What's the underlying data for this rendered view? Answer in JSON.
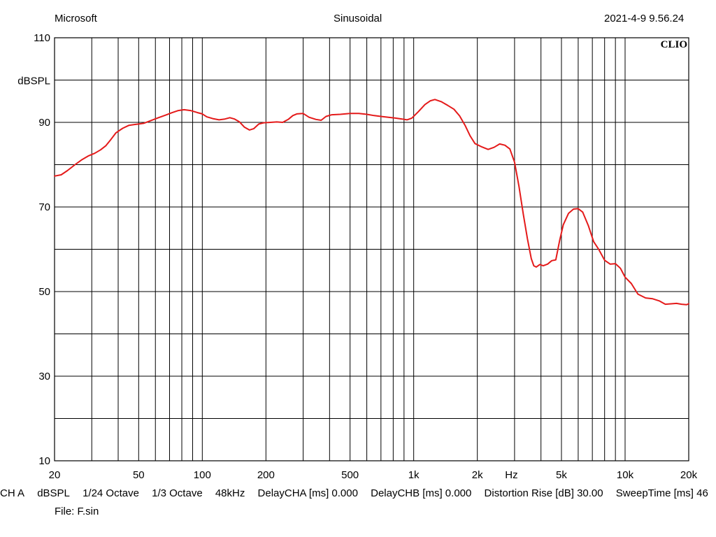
{
  "header": {
    "left": "Microsoft",
    "center": "Sinusoidal",
    "right": "2021-4-9 9.56.24"
  },
  "brand": "CLIO",
  "footer": {
    "items": [
      "CH A",
      "dBSPL",
      "1/24 Octave",
      "1/3 Octave",
      "48kHz",
      "DelayCHA [ms] 0.000",
      "DelayCHB [ms] 0.000",
      "Distortion Rise [dB] 30.00",
      "SweepTime [ms] 46"
    ],
    "file": "File: F.sin"
  },
  "chart_data": {
    "type": "line",
    "xscale": "log",
    "xlim": [
      20,
      20000
    ],
    "ylim": [
      10,
      110
    ],
    "ylabel": "dBSPL",
    "grid": true,
    "xticks": [
      {
        "v": 20,
        "t": "20"
      },
      {
        "v": 50,
        "t": "50"
      },
      {
        "v": 100,
        "t": "100"
      },
      {
        "v": 200,
        "t": "200"
      },
      {
        "v": 500,
        "t": "500"
      },
      {
        "v": 1000,
        "t": "1k"
      },
      {
        "v": 2000,
        "t": "2k"
      },
      {
        "v": 2900,
        "t": "Hz"
      },
      {
        "v": 5000,
        "t": "5k"
      },
      {
        "v": 10000,
        "t": "10k"
      },
      {
        "v": 20000,
        "t": "20k"
      }
    ],
    "yticks": [
      {
        "v": 110,
        "t": "110"
      },
      {
        "v": 90,
        "t": "90"
      },
      {
        "v": 70,
        "t": "70"
      },
      {
        "v": 50,
        "t": "50"
      },
      {
        "v": 30,
        "t": "30"
      },
      {
        "v": 10,
        "t": "10"
      }
    ],
    "series": [
      {
        "color": "#e41a1a",
        "points": [
          [
            20,
            77.3
          ],
          [
            21.5,
            77.6
          ],
          [
            23,
            78.6
          ],
          [
            25,
            80.0
          ],
          [
            27,
            81.2
          ],
          [
            29,
            82.1
          ],
          [
            31,
            82.7
          ],
          [
            33,
            83.5
          ],
          [
            35,
            84.5
          ],
          [
            37,
            86.0
          ],
          [
            39,
            87.5
          ],
          [
            42,
            88.6
          ],
          [
            45,
            89.3
          ],
          [
            48,
            89.5
          ],
          [
            50,
            89.6
          ],
          [
            53,
            89.8
          ],
          [
            57,
            90.4
          ],
          [
            62,
            91.1
          ],
          [
            67,
            91.7
          ],
          [
            72,
            92.3
          ],
          [
            77,
            92.8
          ],
          [
            82,
            93.0
          ],
          [
            88,
            92.8
          ],
          [
            95,
            92.3
          ],
          [
            100,
            92.0
          ],
          [
            105,
            91.3
          ],
          [
            112,
            90.9
          ],
          [
            120,
            90.6
          ],
          [
            128,
            90.8
          ],
          [
            135,
            91.1
          ],
          [
            142,
            90.8
          ],
          [
            150,
            90.1
          ],
          [
            158,
            88.9
          ],
          [
            167,
            88.2
          ],
          [
            175,
            88.5
          ],
          [
            185,
            89.6
          ],
          [
            195,
            89.9
          ],
          [
            210,
            90.0
          ],
          [
            225,
            90.1
          ],
          [
            240,
            90.0
          ],
          [
            255,
            90.7
          ],
          [
            268,
            91.6
          ],
          [
            280,
            92.0
          ],
          [
            300,
            92.1
          ],
          [
            320,
            91.2
          ],
          [
            345,
            90.7
          ],
          [
            365,
            90.5
          ],
          [
            385,
            91.4
          ],
          [
            410,
            91.8
          ],
          [
            450,
            91.9
          ],
          [
            500,
            92.1
          ],
          [
            550,
            92.1
          ],
          [
            600,
            91.9
          ],
          [
            650,
            91.6
          ],
          [
            700,
            91.4
          ],
          [
            760,
            91.2
          ],
          [
            820,
            91.0
          ],
          [
            880,
            90.8
          ],
          [
            930,
            90.6
          ],
          [
            980,
            91.0
          ],
          [
            1050,
            92.5
          ],
          [
            1130,
            94.2
          ],
          [
            1200,
            95.1
          ],
          [
            1260,
            95.4
          ],
          [
            1350,
            94.9
          ],
          [
            1450,
            94.0
          ],
          [
            1550,
            93.1
          ],
          [
            1650,
            91.5
          ],
          [
            1750,
            89.3
          ],
          [
            1850,
            86.8
          ],
          [
            1950,
            85.0
          ],
          [
            2100,
            84.2
          ],
          [
            2250,
            83.6
          ],
          [
            2400,
            84.1
          ],
          [
            2550,
            84.9
          ],
          [
            2700,
            84.6
          ],
          [
            2850,
            83.7
          ],
          [
            3000,
            80.6
          ],
          [
            3150,
            74.8
          ],
          [
            3300,
            68.3
          ],
          [
            3450,
            62.5
          ],
          [
            3600,
            57.8
          ],
          [
            3700,
            56.1
          ],
          [
            3800,
            55.8
          ],
          [
            3950,
            56.4
          ],
          [
            4100,
            56.1
          ],
          [
            4300,
            56.5
          ],
          [
            4500,
            57.3
          ],
          [
            4700,
            57.5
          ],
          [
            4900,
            62.0
          ],
          [
            5100,
            65.8
          ],
          [
            5400,
            68.5
          ],
          [
            5700,
            69.5
          ],
          [
            6000,
            69.6
          ],
          [
            6300,
            68.8
          ],
          [
            6700,
            65.6
          ],
          [
            7100,
            61.8
          ],
          [
            7500,
            60.0
          ],
          [
            8000,
            57.4
          ],
          [
            8500,
            56.5
          ],
          [
            9000,
            56.6
          ],
          [
            9500,
            55.5
          ],
          [
            10000,
            53.4
          ],
          [
            10700,
            51.9
          ],
          [
            11500,
            49.4
          ],
          [
            12500,
            48.5
          ],
          [
            13500,
            48.3
          ],
          [
            14500,
            47.8
          ],
          [
            15500,
            47.0
          ],
          [
            16500,
            47.1
          ],
          [
            17500,
            47.2
          ],
          [
            18500,
            47.0
          ],
          [
            19500,
            46.9
          ],
          [
            20000,
            47.1
          ]
        ]
      }
    ]
  }
}
